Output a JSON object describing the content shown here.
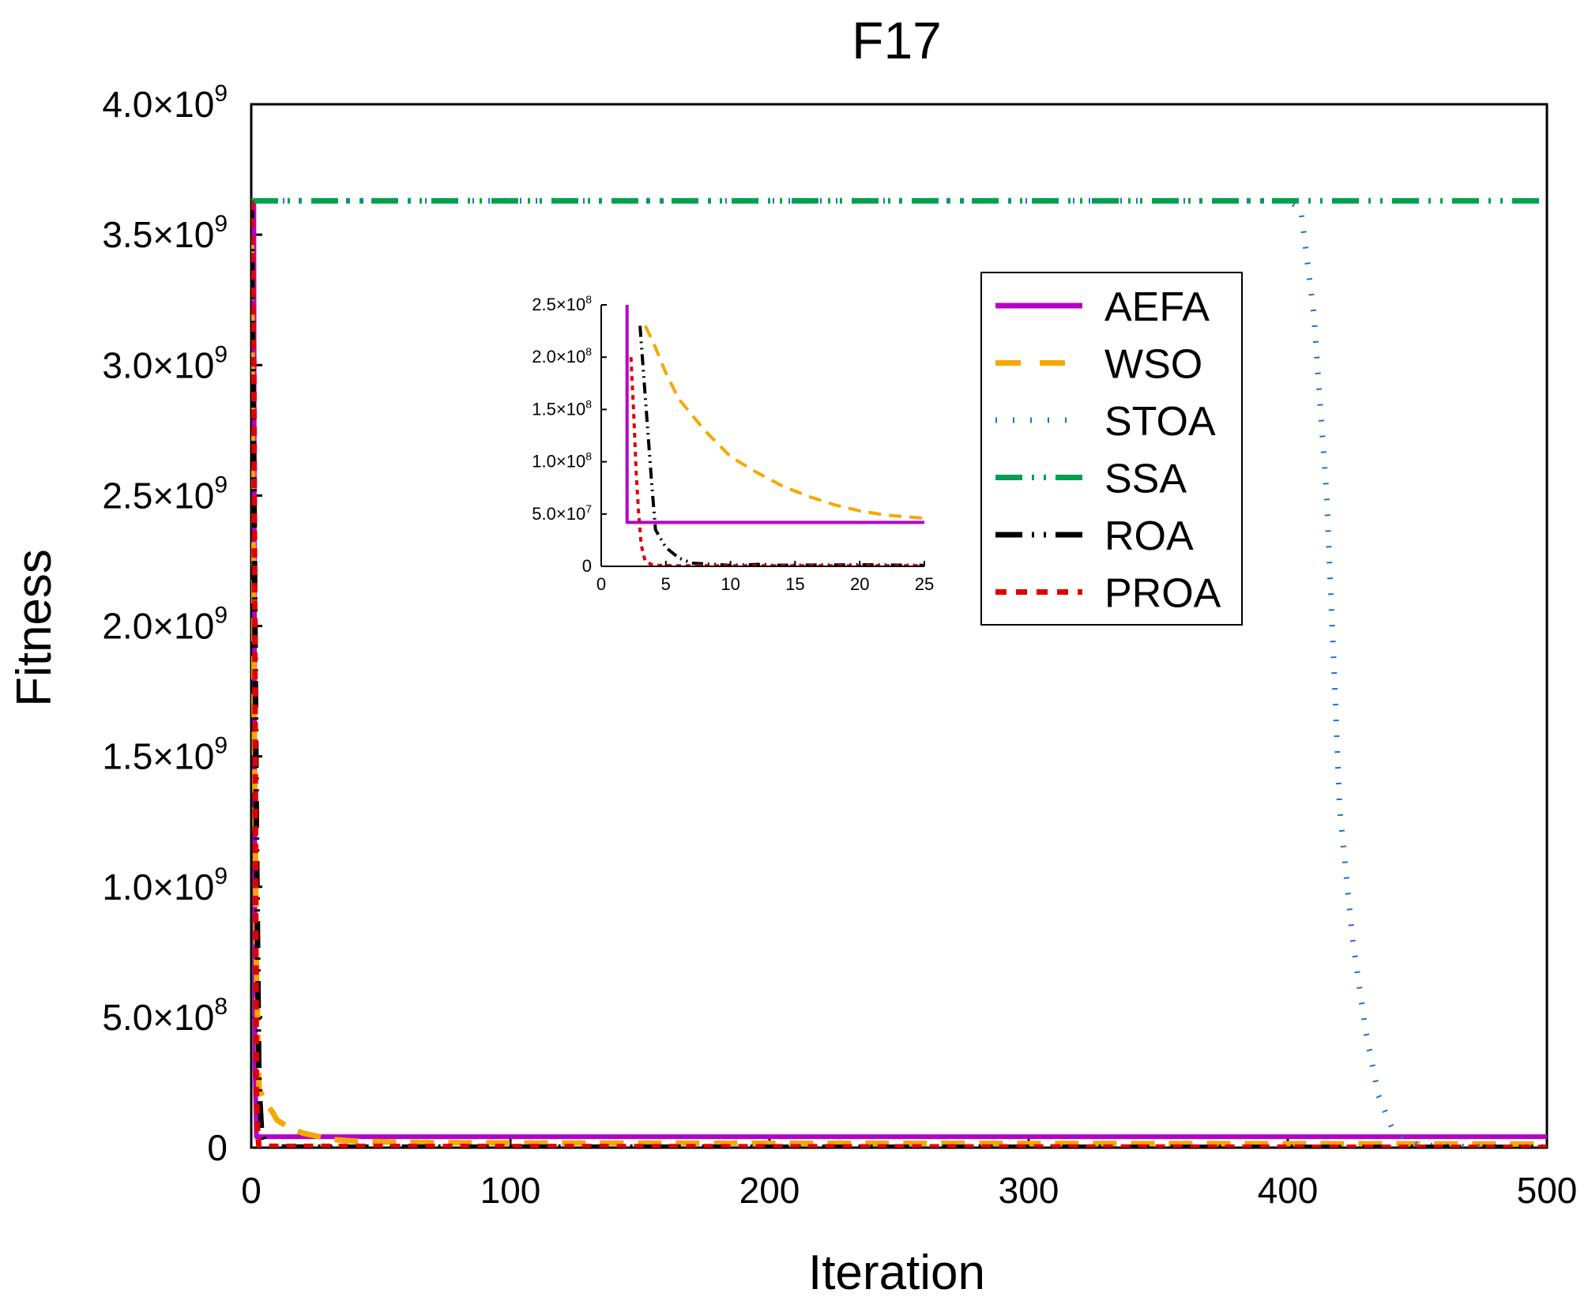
{
  "chart_data": {
    "type": "line",
    "title": "F17",
    "xlabel": "Iteration",
    "ylabel": "Fitness",
    "xlim": [
      0,
      500
    ],
    "ylim": [
      0,
      4000000000
    ],
    "x_ticks": [
      {
        "value": 0,
        "label": "0"
      },
      {
        "value": 100,
        "label": "100"
      },
      {
        "value": 200,
        "label": "200"
      },
      {
        "value": 300,
        "label": "300"
      },
      {
        "value": 400,
        "label": "400"
      },
      {
        "value": 500,
        "label": "500"
      }
    ],
    "y_ticks": [
      {
        "value": 0,
        "mant": "0",
        "exp": ""
      },
      {
        "value": 500000000,
        "mant": "5.0×10",
        "exp": "8"
      },
      {
        "value": 1000000000,
        "mant": "1.0×10",
        "exp": "9"
      },
      {
        "value": 1500000000,
        "mant": "1.5×10",
        "exp": "9"
      },
      {
        "value": 2000000000,
        "mant": "2.0×10",
        "exp": "9"
      },
      {
        "value": 2500000000,
        "mant": "2.5×10",
        "exp": "9"
      },
      {
        "value": 3000000000,
        "mant": "3.0×10",
        "exp": "9"
      },
      {
        "value": 3500000000,
        "mant": "3.5×10",
        "exp": "9"
      },
      {
        "value": 4000000000,
        "mant": "4.0×10",
        "exp": "9"
      }
    ],
    "legend_position": "top-right",
    "series": [
      {
        "name": "AEFA",
        "color": "#b500c8",
        "style": "solid",
        "x": [
          0,
          1,
          1.5,
          2,
          500
        ],
        "y": [
          3630000000,
          3630000000,
          300000000,
          42000000,
          42000000
        ]
      },
      {
        "name": "WSO",
        "color": "#f5a800",
        "style": "dash",
        "x": [
          0,
          1,
          2,
          3,
          5,
          8,
          10,
          15,
          20,
          25,
          30,
          40,
          60,
          100,
          200,
          300,
          400,
          500
        ],
        "y": [
          3630000000,
          1800000000,
          700000000,
          230000000,
          180000000,
          140000000,
          105000000,
          75000000,
          55000000,
          45000000,
          32000000,
          25000000,
          20000000,
          18000000,
          17000000,
          16000000,
          15000000,
          14000000
        ]
      },
      {
        "name": "STOA",
        "color": "#1f6fdb",
        "style": "dot",
        "x": [
          0,
          400,
          405,
          410,
          415,
          418,
          420,
          425,
          430,
          435,
          440,
          445,
          450,
          460,
          500
        ],
        "y": [
          3630000000,
          3630000000,
          3600000000,
          3200000000,
          2500000000,
          1800000000,
          1300000000,
          800000000,
          450000000,
          200000000,
          80000000,
          30000000,
          12000000,
          5000000,
          3000000
        ]
      },
      {
        "name": "SSA",
        "color": "#00a050",
        "style": "dashdotdot",
        "x": [
          0,
          500
        ],
        "y": [
          3630000000,
          3630000000
        ]
      },
      {
        "name": "ROA",
        "color": "#000000",
        "style": "dashdotdot",
        "x": [
          0,
          1,
          2,
          3,
          3.5,
          4,
          5,
          6,
          7,
          10,
          500
        ],
        "y": [
          3630000000,
          2600000000,
          1200000000,
          230000000,
          150000000,
          60000000,
          30000000,
          12000000,
          5000000,
          2000000,
          1000000
        ]
      },
      {
        "name": "PROA",
        "color": "#e00000",
        "style": "shortdash",
        "x": [
          0,
          1,
          2,
          2.5,
          3,
          500
        ],
        "y": [
          3630000000,
          3000000000,
          200000000,
          50000000,
          5000000,
          1000000
        ]
      }
    ],
    "inset": {
      "xlim": [
        0,
        25
      ],
      "ylim": [
        0,
        250000000
      ],
      "x_ticks": [
        {
          "value": 0,
          "label": "0"
        },
        {
          "value": 5,
          "label": "5"
        },
        {
          "value": 10,
          "label": "10"
        },
        {
          "value": 15,
          "label": "15"
        },
        {
          "value": 20,
          "label": "20"
        },
        {
          "value": 25,
          "label": "25"
        }
      ],
      "y_ticks": [
        {
          "value": 0,
          "mant": "0",
          "exp": ""
        },
        {
          "value": 50000000,
          "mant": "5.0×10",
          "exp": "7"
        },
        {
          "value": 100000000,
          "mant": "1.0×10",
          "exp": "8"
        },
        {
          "value": 150000000,
          "mant": "1.5×10",
          "exp": "8"
        },
        {
          "value": 200000000,
          "mant": "2.0×10",
          "exp": "8"
        },
        {
          "value": 250000000,
          "mant": "2.5×10",
          "exp": "8"
        }
      ],
      "series": [
        {
          "name": "AEFA",
          "x": [
            2,
            2,
            25
          ],
          "y": [
            250000000,
            42000000,
            42000000
          ]
        },
        {
          "name": "WSO",
          "x": [
            3.4,
            4,
            5,
            6,
            8,
            10,
            12,
            14,
            16,
            18,
            20,
            22,
            24,
            25
          ],
          "y": [
            230000000,
            215000000,
            185000000,
            160000000,
            130000000,
            105000000,
            90000000,
            77000000,
            67000000,
            59000000,
            53000000,
            49000000,
            47000000,
            46000000
          ]
        },
        {
          "name": "ROA",
          "x": [
            3,
            3.3,
            3.6,
            3.9,
            4.2,
            5,
            6,
            7,
            10,
            12.5,
            13,
            20,
            25
          ],
          "y": [
            230000000,
            180000000,
            130000000,
            80000000,
            35000000,
            18000000,
            8000000,
            3000000,
            1000000,
            2000000,
            1000000,
            1500000,
            1000000
          ]
        },
        {
          "name": "PROA",
          "x": [
            2.3,
            2.5,
            2.7,
            2.9,
            3.1,
            3.4,
            4,
            6,
            10,
            25
          ],
          "y": [
            200000000,
            150000000,
            90000000,
            50000000,
            20000000,
            5000000,
            1000000,
            600000,
            500000,
            500000
          ]
        }
      ]
    }
  }
}
